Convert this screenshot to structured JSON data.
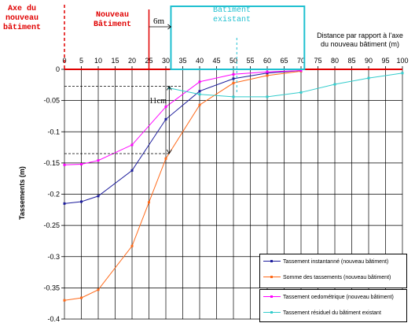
{
  "annotations": {
    "axe_label": "Axe du\nnouveau\nbâtiment",
    "nouveau_label": "Nouveau\nBâtiment",
    "existant_label": "Bâtiment\nexistant",
    "gap_label": "6m",
    "settlement_label": "11cm"
  },
  "colors": {
    "red": "#e00000",
    "cyan": "#20c0d0",
    "blue": "#1c1c9c",
    "orange": "#ff6a1a",
    "magenta": "#ff00ff",
    "cyan_series": "#33cccc"
  },
  "chart_data": {
    "type": "line",
    "xlabel": "Distance par rapport à l'axe\ndu nouveau bâtiment (m)",
    "ylabel": "Tassements (m)",
    "xlim": [
      0,
      100
    ],
    "ylim": [
      -0.4,
      0
    ],
    "x_ticks": [
      0,
      5,
      10,
      15,
      20,
      25,
      30,
      35,
      40,
      45,
      50,
      55,
      60,
      65,
      70,
      75,
      80,
      85,
      90,
      95,
      100
    ],
    "y_ticks": [
      0,
      -0.05,
      -0.1,
      -0.15,
      -0.2,
      -0.25,
      -0.3,
      -0.35,
      -0.4
    ],
    "y_tick_labels": [
      "0",
      "-0.05",
      "-0.1",
      "-0.15",
      "-0.2",
      "-0.25",
      "-0.3",
      "-0.35",
      "-0.4"
    ],
    "grid": true,
    "legend_position": "bottom-right",
    "series": [
      {
        "name": "Tassement instantanné (nouveau bâtiment)",
        "color": "#1c1c9c",
        "x": [
          0,
          5,
          10,
          20,
          30,
          40,
          50,
          60,
          70
        ],
        "y": [
          -0.215,
          -0.212,
          -0.203,
          -0.162,
          -0.08,
          -0.035,
          -0.015,
          -0.006,
          -0.002
        ]
      },
      {
        "name": "Somme des tassements (nouveau bâtiment)",
        "color": "#ff6a1a",
        "x": [
          0,
          5,
          10,
          20,
          25,
          30,
          40,
          50,
          60,
          70
        ],
        "y": [
          -0.37,
          -0.366,
          -0.353,
          -0.283,
          -0.213,
          -0.143,
          -0.057,
          -0.022,
          -0.01,
          -0.003
        ]
      },
      {
        "name": "Tassement oedométrique (nouveau bâtiment)",
        "color": "#ff00ff",
        "x": [
          0,
          5,
          10,
          20,
          30,
          40,
          50,
          60,
          70
        ],
        "y": [
          -0.153,
          -0.152,
          -0.146,
          -0.121,
          -0.06,
          -0.02,
          -0.008,
          -0.004,
          -0.002
        ]
      },
      {
        "name": "Tassement résiduel du bâtiment existant",
        "color": "#33cccc",
        "x": [
          31,
          40,
          50,
          60,
          70,
          80,
          90,
          100
        ],
        "y": [
          -0.03,
          -0.04,
          -0.044,
          -0.044,
          -0.037,
          -0.024,
          -0.014,
          -0.006
        ]
      }
    ]
  }
}
